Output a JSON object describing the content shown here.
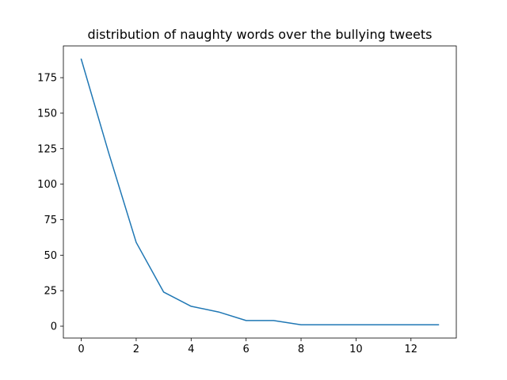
{
  "chart_data": {
    "type": "line",
    "title": "distribution of naughty words over the bullying tweets",
    "xlabel": "",
    "ylabel": "",
    "xlim": [
      -0.65,
      13.65
    ],
    "ylim": [
      -8.35,
      197.35
    ],
    "xticks": [
      0,
      2,
      4,
      6,
      8,
      10,
      12
    ],
    "yticks": [
      0,
      25,
      50,
      75,
      100,
      125,
      150,
      175
    ],
    "grid": false,
    "series": [
      {
        "color": "#1f77b4",
        "x": [
          0,
          1,
          2,
          3,
          4,
          5,
          6,
          7,
          8,
          9,
          10,
          11,
          12,
          13
        ],
        "y": [
          188,
          122,
          59,
          24,
          14,
          10,
          4,
          4,
          1,
          1,
          1,
          1,
          1,
          1
        ]
      }
    ]
  }
}
